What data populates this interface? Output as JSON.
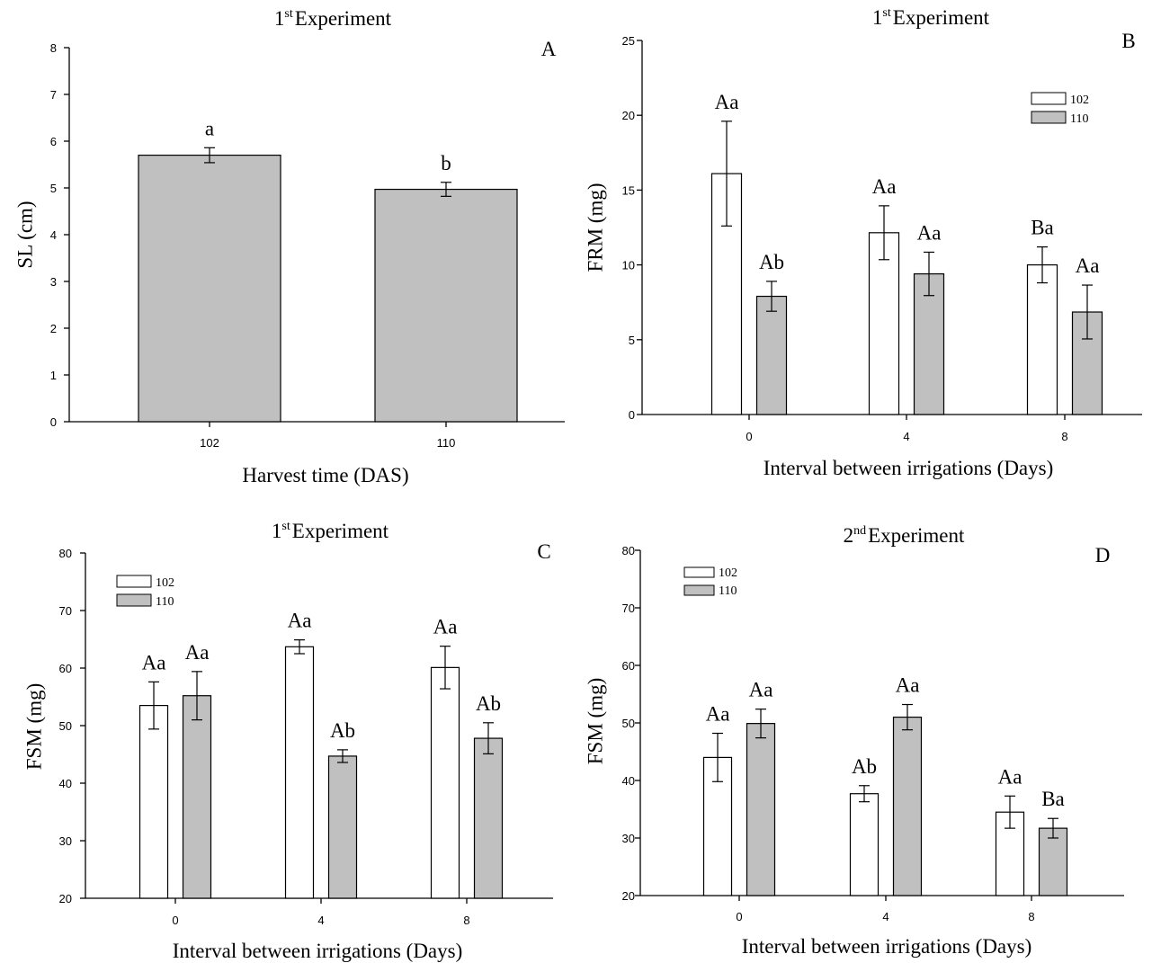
{
  "colors": {
    "s102": "#ffffff",
    "s110": "#c0c0c0",
    "stroke": "#000000"
  },
  "chart_data": [
    {
      "type": "bar",
      "panel": "A",
      "title": "1st Experiment",
      "title_main": "Experiment",
      "title_prefix": "1",
      "title_sup": "st",
      "xlabel": "Harvest time (DAS)",
      "ylabel": "SL (cm)",
      "ylim": [
        0,
        8
      ],
      "yticks": [
        0,
        1,
        2,
        3,
        4,
        5,
        6,
        7,
        8
      ],
      "categories": [
        "102",
        "110"
      ],
      "series": [
        {
          "values": [
            5.7,
            4.97
          ],
          "errors": [
            0.16,
            0.15
          ],
          "letters": [
            "a",
            "b"
          ]
        }
      ],
      "legend": null
    },
    {
      "type": "bar",
      "panel": "B",
      "title": "1st Experiment",
      "title_main": "Experiment",
      "title_prefix": "1",
      "title_sup": "st",
      "xlabel": "Interval between irrigations (Days)",
      "ylabel": "FRM (mg)",
      "ylim": [
        0,
        25
      ],
      "yticks": [
        0,
        5,
        10,
        15,
        20,
        25
      ],
      "categories": [
        "0",
        "4",
        "8"
      ],
      "series": [
        {
          "name": "102",
          "values": [
            16.1,
            12.15,
            10.0
          ],
          "errors": [
            3.5,
            1.8,
            1.2
          ],
          "letters": [
            "Aa",
            "Aa",
            "Ba"
          ]
        },
        {
          "name": "110",
          "values": [
            7.9,
            9.4,
            6.85
          ],
          "errors": [
            1.0,
            1.45,
            1.8
          ],
          "letters": [
            "Ab",
            "Aa",
            "Aa"
          ]
        }
      ],
      "legend": "top-right"
    },
    {
      "type": "bar",
      "panel": "C",
      "title": "1st Experiment",
      "title_main": "Experiment",
      "title_prefix": "1",
      "title_sup": "st",
      "xlabel": "Interval between irrigations (Days)",
      "ylabel": "FSM (mg)",
      "ylim": [
        20,
        80
      ],
      "yticks": [
        20,
        30,
        40,
        50,
        60,
        70,
        80
      ],
      "categories": [
        "0",
        "4",
        "8"
      ],
      "series": [
        {
          "name": "102",
          "values": [
            53.5,
            63.7,
            60.1
          ],
          "errors": [
            4.1,
            1.2,
            3.7
          ],
          "letters": [
            "Aa",
            "Aa",
            "Aa"
          ]
        },
        {
          "name": "110",
          "values": [
            55.2,
            44.7,
            47.8
          ],
          "errors": [
            4.2,
            1.1,
            2.7
          ],
          "letters": [
            "Aa",
            "Ab",
            "Ab"
          ]
        }
      ],
      "legend": "top-left"
    },
    {
      "type": "bar",
      "panel": "D",
      "title": "2nd Experiment",
      "title_main": "Experiment",
      "title_prefix": "2",
      "title_sup": "nd",
      "xlabel": "Interval between irrigations (Days)",
      "ylabel": "FSM (mg)",
      "ylim": [
        20,
        80
      ],
      "yticks": [
        20,
        30,
        40,
        50,
        60,
        70,
        80
      ],
      "categories": [
        "0",
        "4",
        "8"
      ],
      "series": [
        {
          "name": "102",
          "values": [
            44.0,
            37.7,
            34.5
          ],
          "errors": [
            4.2,
            1.4,
            2.8
          ],
          "letters": [
            "Aa",
            "Ab",
            "Aa"
          ]
        },
        {
          "name": "110",
          "values": [
            49.9,
            51.0,
            31.7
          ],
          "errors": [
            2.5,
            2.2,
            1.7
          ],
          "letters": [
            "Aa",
            "Aa",
            "Ba"
          ]
        }
      ],
      "legend": "top-left"
    }
  ]
}
